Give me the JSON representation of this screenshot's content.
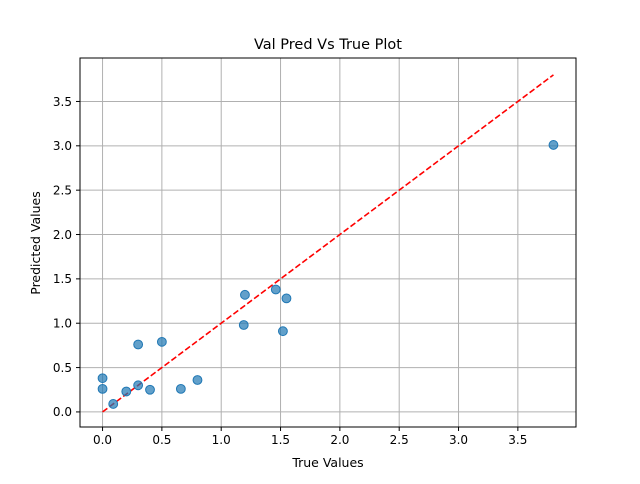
{
  "chart_data": {
    "type": "scatter",
    "title": "Val Pred Vs True Plot",
    "xlabel": "True Values",
    "ylabel": "Predicted Values",
    "xlim": [
      -0.19,
      3.99
    ],
    "ylim": [
      -0.17,
      3.99
    ],
    "xticks": [
      0.0,
      0.5,
      1.0,
      1.5,
      2.0,
      2.5,
      3.0,
      3.5
    ],
    "xtick_labels": [
      "0.0",
      "0.5",
      "1.0",
      "1.5",
      "2.0",
      "2.5",
      "3.0",
      "3.5"
    ],
    "yticks": [
      0.0,
      0.5,
      1.0,
      1.5,
      2.0,
      2.5,
      3.0,
      3.5
    ],
    "ytick_labels": [
      "0.0",
      "0.5",
      "1.0",
      "1.5",
      "2.0",
      "2.5",
      "3.0",
      "3.5"
    ],
    "grid": true,
    "points": [
      {
        "x": 0.0,
        "y": 0.38
      },
      {
        "x": 0.0,
        "y": 0.26
      },
      {
        "x": 0.09,
        "y": 0.09
      },
      {
        "x": 0.2,
        "y": 0.23
      },
      {
        "x": 0.3,
        "y": 0.3
      },
      {
        "x": 0.3,
        "y": 0.76
      },
      {
        "x": 0.4,
        "y": 0.25
      },
      {
        "x": 0.5,
        "y": 0.79
      },
      {
        "x": 0.66,
        "y": 0.26
      },
      {
        "x": 0.8,
        "y": 0.36
      },
      {
        "x": 1.19,
        "y": 0.98
      },
      {
        "x": 1.2,
        "y": 1.32
      },
      {
        "x": 1.46,
        "y": 1.38
      },
      {
        "x": 1.52,
        "y": 0.91
      },
      {
        "x": 1.55,
        "y": 1.28
      },
      {
        "x": 3.8,
        "y": 3.01
      }
    ],
    "reference_line": {
      "x": [
        0.0,
        3.8
      ],
      "y": [
        0.0,
        3.8
      ],
      "style": "dashed"
    },
    "colors": {
      "points": "#1f77b4",
      "reference_line": "#ff0000",
      "grid": "#b0b0b0"
    }
  }
}
